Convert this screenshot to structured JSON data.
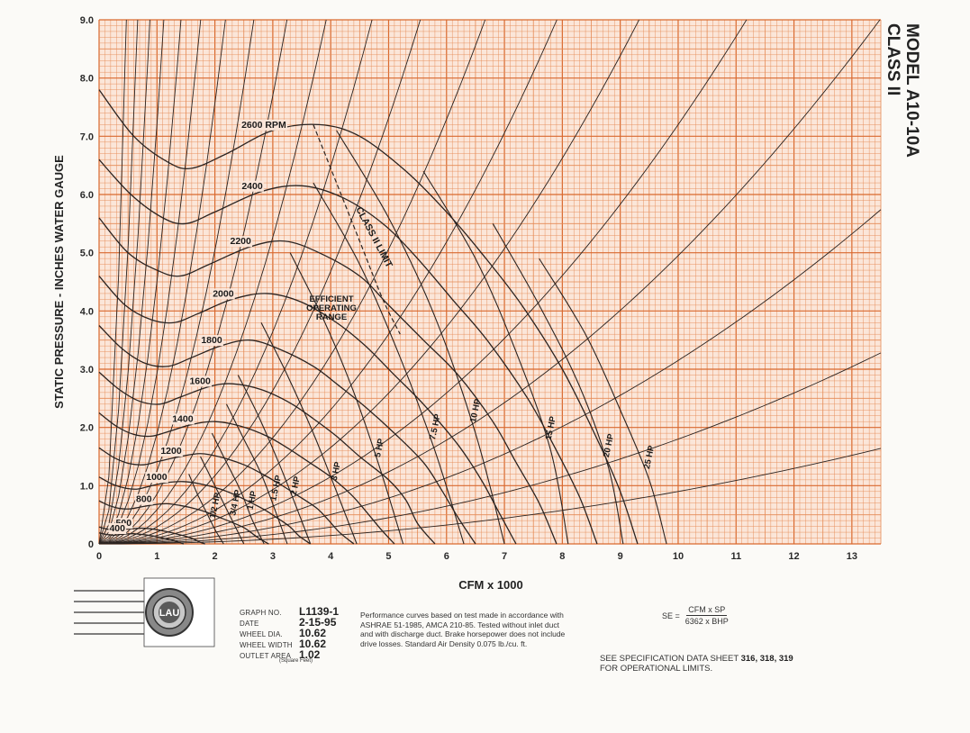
{
  "model": {
    "line1": "MODEL A10-10A",
    "line2": "CLASS II"
  },
  "logo": {
    "text": "LAU"
  },
  "graph_info": {
    "graph_no_label": "GRAPH NO.",
    "graph_no": "L1139-1",
    "date_label": "DATE",
    "date": "2-15-95",
    "wheel_dia_label": "WHEEL DIA.",
    "wheel_dia": "10.62",
    "wheel_width_label": "WHEEL WIDTH",
    "wheel_width": "10.62",
    "outlet_area_label": "OUTLET AREA",
    "outlet_area": "1.02",
    "outlet_area_unit": "(Square Feet)"
  },
  "notes": "Performance curves based on test made in accordance with ASHRAE 51-1985, AMCA 210-85. Tested without inlet duct and with discharge duct. Brake horsepower does not include drive losses. Standard Air Density 0.075 lb./cu. ft.",
  "formula": {
    "lhs": "SE =",
    "numerator": "CFM x SP",
    "denominator": "6362 x BHP"
  },
  "spec": {
    "prefix": "SEE SPECIFICATION DATA SHEET",
    "sheets": "316, 318, 319",
    "suffix": "FOR OPERATIONAL LIMITS."
  },
  "colors": {
    "grid": "#e58a55",
    "grid_major": "#d9692e",
    "curve": "#2b2320",
    "paper": "#fbfaf7"
  },
  "chart_data": {
    "type": "line",
    "xlabel": "CFM x 1000",
    "ylabel": "STATIC PRESSURE - INCHES WATER GAUGE",
    "xlim": [
      0,
      13.5
    ],
    "ylim": [
      0,
      9
    ],
    "x_ticks": [
      "0",
      "1",
      "2",
      "3",
      "4",
      "5",
      "6",
      "7",
      "8",
      "9",
      "10",
      "11",
      "12",
      "13"
    ],
    "y_ticks": [
      "0",
      "1.0",
      "2.0",
      "3.0",
      "4.0",
      "5.0",
      "6.0",
      "7.0",
      "8.0",
      "9.0"
    ],
    "grid": true,
    "rpm_curves": [
      {
        "label": "2600 RPM",
        "rpm": 2600,
        "x": [
          0,
          0.6,
          1.2,
          1.6,
          2.2,
          3,
          3.8,
          4.5,
          5.3,
          6,
          6.6,
          7.3,
          8,
          8.6,
          9,
          9.3
        ],
        "y": [
          7.8,
          7.0,
          6.55,
          6.45,
          6.7,
          7.1,
          7.2,
          7.0,
          6.4,
          5.7,
          5.0,
          4.1,
          3.0,
          1.8,
          0.9,
          0
        ]
      },
      {
        "label": "2400",
        "rpm": 2400,
        "x": [
          0,
          0.55,
          1.1,
          1.5,
          2.0,
          2.8,
          3.5,
          4.2,
          4.9,
          5.5,
          6.1,
          6.7,
          7.4,
          7.9,
          8.3,
          8.6
        ],
        "y": [
          6.6,
          6.0,
          5.6,
          5.5,
          5.7,
          6.05,
          6.15,
          5.95,
          5.5,
          4.9,
          4.2,
          3.5,
          2.5,
          1.6,
          0.8,
          0
        ]
      },
      {
        "label": "2200",
        "rpm": 2200,
        "x": [
          0,
          0.5,
          1.0,
          1.4,
          1.9,
          2.6,
          3.2,
          3.8,
          4.5,
          5.0,
          5.6,
          6.2,
          6.8,
          7.2,
          7.6,
          7.9
        ],
        "y": [
          5.6,
          5.0,
          4.7,
          4.6,
          4.8,
          5.1,
          5.2,
          5.0,
          4.6,
          4.1,
          3.5,
          2.9,
          2.1,
          1.4,
          0.7,
          0
        ]
      },
      {
        "label": "2000",
        "rpm": 2000,
        "x": [
          0,
          0.45,
          0.9,
          1.3,
          1.7,
          2.3,
          2.9,
          3.5,
          4.1,
          4.6,
          5.1,
          5.6,
          6.2,
          6.6,
          6.9,
          7.2
        ],
        "y": [
          4.6,
          4.1,
          3.85,
          3.8,
          3.95,
          4.2,
          4.3,
          4.15,
          3.8,
          3.4,
          2.9,
          2.4,
          1.7,
          1.1,
          0.55,
          0
        ]
      },
      {
        "label": "1800",
        "rpm": 1800,
        "x": [
          0,
          0.4,
          0.8,
          1.2,
          1.6,
          2.1,
          2.6,
          3.1,
          3.7,
          4.1,
          4.6,
          5.1,
          5.6,
          5.9,
          6.2,
          6.5
        ],
        "y": [
          3.75,
          3.35,
          3.1,
          3.05,
          3.2,
          3.4,
          3.5,
          3.35,
          3.05,
          2.75,
          2.35,
          1.9,
          1.4,
          0.95,
          0.45,
          0
        ]
      },
      {
        "label": "1600",
        "rpm": 1600,
        "x": [
          0,
          0.35,
          0.7,
          1.05,
          1.4,
          1.9,
          2.3,
          2.8,
          3.3,
          3.7,
          4.1,
          4.5,
          5.0,
          5.3,
          5.5,
          5.8
        ],
        "y": [
          2.95,
          2.65,
          2.45,
          2.4,
          2.52,
          2.7,
          2.75,
          2.65,
          2.42,
          2.15,
          1.85,
          1.5,
          1.1,
          0.75,
          0.35,
          0
        ]
      },
      {
        "label": "1400",
        "rpm": 1400,
        "x": [
          0,
          0.3,
          0.6,
          0.9,
          1.2,
          1.6,
          2.0,
          2.45,
          2.9,
          3.25,
          3.6,
          4.0,
          4.35,
          4.6,
          4.85,
          5.1
        ],
        "y": [
          2.25,
          2.02,
          1.88,
          1.85,
          1.93,
          2.05,
          2.1,
          2.02,
          1.85,
          1.65,
          1.42,
          1.15,
          0.85,
          0.57,
          0.27,
          0
        ]
      },
      {
        "label": "1200",
        "rpm": 1200,
        "x": [
          0,
          0.26,
          0.52,
          0.78,
          1.04,
          1.4,
          1.75,
          2.1,
          2.5,
          2.8,
          3.1,
          3.4,
          3.75,
          3.95,
          4.15,
          4.4
        ],
        "y": [
          1.65,
          1.48,
          1.38,
          1.36,
          1.42,
          1.5,
          1.55,
          1.49,
          1.36,
          1.21,
          1.04,
          0.85,
          0.62,
          0.42,
          0.2,
          0
        ]
      },
      {
        "label": "1000",
        "rpm": 1000,
        "x": [
          0,
          0.22,
          0.44,
          0.65,
          0.87,
          1.15,
          1.45,
          1.75,
          2.1,
          2.35,
          2.6,
          2.85,
          3.1,
          3.3,
          3.45,
          3.65
        ],
        "y": [
          1.15,
          1.03,
          0.96,
          0.94,
          0.99,
          1.05,
          1.07,
          1.03,
          0.94,
          0.84,
          0.72,
          0.59,
          0.43,
          0.29,
          0.14,
          0
        ]
      },
      {
        "label": "800",
        "rpm": 800,
        "x": [
          0,
          0.17,
          0.35,
          0.52,
          0.7,
          0.93,
          1.17,
          1.4,
          1.68,
          1.87,
          2.07,
          2.27,
          2.5,
          2.63,
          2.77,
          2.93
        ],
        "y": [
          0.74,
          0.66,
          0.61,
          0.6,
          0.63,
          0.67,
          0.69,
          0.66,
          0.6,
          0.54,
          0.46,
          0.38,
          0.28,
          0.19,
          0.09,
          0
        ]
      },
      {
        "label": "500",
        "rpm": 500,
        "x": [
          0,
          0.11,
          0.22,
          0.33,
          0.44,
          0.58,
          0.73,
          0.88,
          1.05,
          1.17,
          1.3,
          1.42,
          1.56,
          1.65,
          1.73,
          1.83
        ],
        "y": [
          0.29,
          0.26,
          0.24,
          0.235,
          0.25,
          0.26,
          0.27,
          0.26,
          0.235,
          0.21,
          0.18,
          0.15,
          0.11,
          0.075,
          0.035,
          0
        ]
      },
      {
        "label": "400",
        "rpm": 400,
        "x": [
          0,
          0.09,
          0.18,
          0.26,
          0.35,
          0.47,
          0.58,
          0.7,
          0.84,
          0.94,
          1.04,
          1.14,
          1.25,
          1.32,
          1.39,
          1.46
        ],
        "y": [
          0.19,
          0.17,
          0.155,
          0.15,
          0.16,
          0.17,
          0.175,
          0.165,
          0.15,
          0.135,
          0.115,
          0.095,
          0.07,
          0.05,
          0.025,
          0
        ]
      }
    ],
    "hp_curves": [
      {
        "label": "1/2 HP",
        "hp": 0.5,
        "x": [
          1.55,
          1.7,
          1.85,
          2.0,
          2.15
        ],
        "y": [
          1.2,
          0.85,
          0.55,
          0.25,
          0
        ]
      },
      {
        "label": "3/4 HP",
        "hp": 0.75,
        "x": [
          1.75,
          1.95,
          2.15,
          2.35,
          2.5
        ],
        "y": [
          1.5,
          1.1,
          0.7,
          0.3,
          0
        ]
      },
      {
        "label": "1 HP",
        "hp": 1,
        "x": [
          1.95,
          2.2,
          2.45,
          2.65,
          2.85
        ],
        "y": [
          1.9,
          1.4,
          0.9,
          0.4,
          0
        ]
      },
      {
        "label": "1.5 HP",
        "hp": 1.5,
        "x": [
          2.2,
          2.5,
          2.8,
          3.05,
          3.25
        ],
        "y": [
          2.4,
          1.8,
          1.2,
          0.55,
          0
        ]
      },
      {
        "label": "2 HP",
        "hp": 2,
        "x": [
          2.4,
          2.75,
          3.1,
          3.4,
          3.65
        ],
        "y": [
          2.9,
          2.2,
          1.4,
          0.65,
          0
        ]
      },
      {
        "label": "3 HP",
        "hp": 3,
        "x": [
          2.8,
          3.25,
          3.7,
          4.1,
          4.45
        ],
        "y": [
          3.8,
          2.9,
          1.9,
          0.9,
          0
        ]
      },
      {
        "label": "5 HP",
        "hp": 5,
        "x": [
          3.3,
          3.9,
          4.4,
          4.85,
          5.25
        ],
        "y": [
          5.0,
          3.8,
          2.6,
          1.3,
          0
        ]
      },
      {
        "label": "7.5 HP",
        "hp": 7.5,
        "x": [
          3.7,
          4.5,
          5.2,
          5.8,
          6.3
        ],
        "y": [
          6.2,
          4.8,
          3.2,
          1.6,
          0
        ]
      },
      {
        "label": "10 HP",
        "hp": 10,
        "x": [
          4.1,
          5.0,
          5.8,
          6.5,
          7.0
        ],
        "y": [
          7.1,
          5.6,
          3.9,
          1.9,
          0
        ]
      },
      {
        "label": "15 HP",
        "hp": 15,
        "x": [
          5.6,
          6.5,
          7.2,
          7.8,
          8.1
        ],
        "y": [
          6.4,
          4.9,
          3.3,
          1.6,
          0
        ]
      },
      {
        "label": "20 HP",
        "hp": 20,
        "x": [
          6.8,
          7.6,
          8.3,
          8.8,
          9.05
        ],
        "y": [
          5.5,
          4.1,
          2.7,
          1.3,
          0
        ]
      },
      {
        "label": "25 HP",
        "hp": 25,
        "x": [
          7.6,
          8.4,
          9.0,
          9.5,
          9.8
        ],
        "y": [
          4.9,
          3.6,
          2.3,
          1.1,
          0
        ]
      }
    ],
    "annotations": [
      {
        "text": "CLASS II LIMIT"
      },
      {
        "text": "EFFICIENT"
      },
      {
        "text": "OPERATING"
      },
      {
        "text": "RANGE"
      }
    ],
    "class_limit": {
      "x": [
        3.7,
        4.1,
        4.5,
        4.9,
        5.2
      ],
      "y": [
        7.2,
        6.2,
        5.2,
        4.2,
        3.6
      ]
    }
  }
}
